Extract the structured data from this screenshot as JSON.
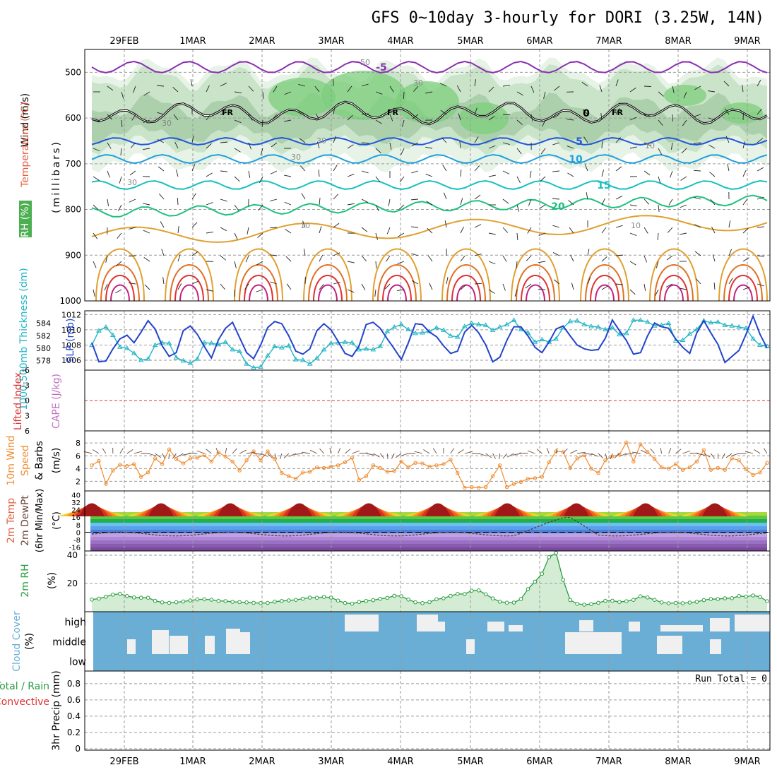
{
  "page": {
    "title": "GFS 0~10day 3-hourly for DORI (3.25W, 14N)"
  },
  "chart_data": {
    "type": "multi-panel-meteogram",
    "colors": {
      "frame": "#000000",
      "grid": "#9a9a9a",
      "wind_label": "#000000",
      "temp_label": "#e06040",
      "rh_label": "#2a9d3f",
      "mb_label": "#000000",
      "thick_line": "#22b5c5",
      "slp_line": "#2244cc",
      "li_label": "#e03030",
      "cape_label": "#c070c0",
      "wind10_line": "#f08c30",
      "temp2m_dash": "#000000",
      "rh2m_line": "#2a9d3f",
      "rh2m_fill": "#d4ecd4",
      "cloud_bg": "#6aaed6",
      "cloud_block": "#f0f0f0",
      "precip_total": "#2a9d3f",
      "precip_conv": "#e03030"
    },
    "x_axis": {
      "type": "time",
      "labels": [
        "29FEB",
        "1MAR",
        "2MAR",
        "3MAR",
        "4MAR",
        "5MAR",
        "6MAR",
        "7MAR",
        "8MAR",
        "9MAR"
      ],
      "range_hours": [
        0,
        240
      ]
    },
    "panels": [
      {
        "name": "upper-air",
        "type": "contour",
        "ylabel_parts": [
          "Wind (m/s)",
          "Temperature (°C)",
          "RH (%)",
          "(millibars)"
        ],
        "y_ticks": [
          "500",
          "600",
          "700",
          "800",
          "900",
          "1000"
        ],
        "ylim": [
          450,
          1000
        ],
        "inverted": true,
        "temperature_contours": [
          {
            "value": -5,
            "label": "-5",
            "color": "#8a2fb0"
          },
          {
            "value": 0,
            "label": "0",
            "color": "#000000",
            "freezing_label": "FR"
          },
          {
            "value": 5,
            "label": "5",
            "color": "#2255dd"
          },
          {
            "value": 10,
            "label": "10",
            "color": "#1fa0e0"
          },
          {
            "value": 15,
            "label": "15",
            "color": "#15c0c0"
          },
          {
            "value": 20,
            "label": "20",
            "color": "#20c080"
          },
          {
            "value": 25,
            "label": "",
            "color": "#e0a030"
          },
          {
            "value": 30,
            "label": "",
            "color": "#e07020"
          },
          {
            "value": 35,
            "label": "",
            "color": "#e03030"
          },
          {
            "value": 40,
            "label": "",
            "color": "#c02080"
          }
        ],
        "rh_labels": [
          "50",
          "30",
          "30",
          "30",
          "30",
          "30",
          "10",
          "10",
          "10"
        ]
      },
      {
        "name": "thickness-slp",
        "type": "line",
        "ylabel_left": "1000-500mb Thickness (dm)",
        "ylabel_right": "SLP (mb)",
        "left_ticks": [
          "578",
          "580",
          "582",
          "584"
        ],
        "left_range": [
          576.5,
          586
        ],
        "right_ticks": [
          "1006",
          "1008",
          "1010",
          "1012"
        ],
        "right_range": [
          1004.7,
          1012.5
        ],
        "series": [
          {
            "name": "1000-500mb Thickness",
            "axis": "left",
            "values": [
              580.5,
              582.8,
              583.4,
              582.1,
              580.2,
              580.0,
              579.2,
              578.1,
              578.3,
              580.5,
              580.9,
              580.8,
              578.5,
              578.0,
              577.6,
              578.3,
              580.9,
              580.8,
              580.6,
              581.0,
              579.8,
              579.5,
              577.5,
              576.9,
              577.0,
              578.8,
              580.3,
              580.1,
              580.4,
              578.2,
              578.1,
              577.5,
              578.4,
              579.8,
              580.8,
              580.9,
              581.0,
              580.9,
              579.8,
              579.9,
              579.8,
              580.3,
              582.7,
              583.4,
              583.8,
              583.0,
              582.4,
              582.5,
              582.7,
              583.3,
              582.9,
              582.0,
              581.8,
              583.5,
              584.0,
              583.8,
              583.7,
              582.9,
              583.4,
              583.8,
              584.5,
              583.0,
              582.5,
              581.0,
              581.4,
              581.0,
              581.5,
              583.3,
              584.3,
              584.4,
              583.8,
              583.5,
              583.4,
              583.0,
              583.3,
              582.2,
              582.4,
              584.5,
              584.5,
              584.2,
              583.6,
              583.7,
              584.0,
              581.2,
              581.3,
              582.3,
              583.0,
              584.4,
              584.1,
              584.2,
              583.7,
              583.6,
              583.4,
              583.2,
              581.5,
              580.5,
              580.3
            ]
          },
          {
            "name": "SLP",
            "axis": "right",
            "values": [
              1008.3,
              1005.8,
              1005.9,
              1007.5,
              1008.8,
              1009.3,
              1008.3,
              1009.7,
              1011.2,
              1010.1,
              1007.9,
              1006.5,
              1007.0,
              1009.9,
              1010.5,
              1009.4,
              1007.8,
              1006.3,
              1008.7,
              1010.2,
              1011.0,
              1009.0,
              1007.0,
              1006.2,
              1008.0,
              1010.3,
              1011.1,
              1010.8,
              1009.2,
              1007.2,
              1006.8,
              1007.5,
              1009.9,
              1010.8,
              1010.0,
              1008.5,
              1006.9,
              1006.5,
              1007.9,
              1010.7,
              1011.0,
              1010.2,
              1008.8,
              1007.5,
              1006.1,
              1008.3,
              1010.8,
              1010.7,
              1009.7,
              1009.1,
              1007.9,
              1006.9,
              1007.2,
              1009.7,
              1010.6,
              1009.6,
              1008.0,
              1005.8,
              1006.4,
              1008.6,
              1010.4,
              1010.4,
              1009.2,
              1007.7,
              1007.0,
              1008.4,
              1010.1,
              1010.5,
              1009.2,
              1008.0,
              1007.5,
              1007.3,
              1007.4,
              1008.9,
              1011.3,
              1009.9,
              1008.6,
              1006.8,
              1007.0,
              1009.2,
              1010.9,
              1010.4,
              1010.2,
              1008.8,
              1007.7,
              1006.9,
              1009.6,
              1011.2,
              1009.6,
              1008.1,
              1005.7,
              1006.5,
              1007.3,
              1009.4,
              1011.8,
              1009.4,
              1007.6
            ]
          }
        ]
      },
      {
        "name": "li-cape",
        "type": "line",
        "ylabel_left": "Lifted Index",
        "ylabel_right": "CAPE (J/kg)",
        "y_ticks": [
          "-6",
          "-3",
          "0",
          "3",
          "6"
        ],
        "ylim": [
          -6,
          6
        ],
        "zero_line": true
      },
      {
        "name": "wind10m",
        "type": "line",
        "ylabel_parts": [
          "10m Wind",
          "Speed",
          "& Barbs",
          "(m/s)"
        ],
        "y_ticks": [
          "2",
          "4",
          "6",
          "8"
        ],
        "ylim": [
          0.5,
          9.9
        ],
        "series": [
          {
            "name": "10m Wind Speed",
            "values": [
              4.5,
              5.2,
              1.6,
              3.7,
              4.6,
              4.4,
              4.7,
              2.7,
              3.4,
              5.6,
              4.7,
              7.0,
              5.5,
              4.8,
              5.6,
              5.7,
              6.1,
              5.1,
              6.5,
              5.9,
              5.1,
              3.7,
              5.3,
              6.7,
              5.3,
              6.7,
              5.5,
              3.3,
              2.8,
              2.4,
              3.4,
              3.5,
              4.2,
              4.1,
              4.3,
              4.5,
              5.0,
              5.7,
              2.2,
              2.8,
              4.5,
              4.1,
              3.5,
              3.6,
              5.1,
              4.2,
              4.9,
              4.8,
              4.3,
              4.5,
              4.7,
              5.4,
              3.3,
              1.0,
              1.1,
              1.0,
              1.1,
              2.8,
              4.5,
              1.1,
              1.6,
              1.9,
              2.4,
              2.5,
              2.7,
              5.0,
              6.7,
              6.6,
              4.1,
              5.6,
              6.1,
              4.0,
              3.3,
              5.3,
              5.9,
              6.2,
              8.1,
              5.1,
              7.8,
              6.6,
              5.5,
              4.2,
              4.0,
              4.7,
              3.8,
              4.2,
              5.1,
              6.9,
              3.8,
              4.1,
              3.8,
              5.6,
              5.3,
              3.9,
              3.0,
              3.4,
              4.9
            ]
          }
        ]
      },
      {
        "name": "temp2m",
        "type": "area",
        "ylabel_parts": [
          "2m Temp",
          "2m DewPt",
          "(6hr Min/Max)",
          "(°C)"
        ],
        "y_ticks": [
          "-16",
          "-8",
          "0",
          "8",
          "16",
          "24",
          "32",
          "40"
        ],
        "ylim": [
          -20,
          44
        ],
        "temp_min": 23,
        "temp_max": 40,
        "dewpoint_range": [
          -4,
          11
        ]
      },
      {
        "name": "rh2m",
        "type": "area",
        "ylabel_parts": [
          "2m RH",
          "(%)"
        ],
        "y_ticks": [
          "20",
          "40"
        ],
        "ylim": [
          0,
          43
        ],
        "series": [
          {
            "name": "2m RH",
            "values": [
              8.6,
              9.3,
              10.6,
              12.1,
              12.7,
              11.1,
              10.1,
              9.9,
              9.9,
              7.7,
              6.6,
              6.3,
              6.7,
              7.2,
              8.0,
              8.7,
              8.8,
              8.5,
              7.7,
              7.5,
              7.0,
              6.8,
              6.6,
              6.3,
              6.1,
              6.2,
              7.1,
              7.6,
              8.0,
              8.4,
              9.2,
              10.0,
              9.9,
              10.5,
              10.0,
              7.9,
              6.2,
              5.7,
              6.9,
              7.6,
              8.2,
              9.1,
              9.8,
              11.3,
              11.0,
              8.6,
              6.7,
              6.1,
              6.8,
              8.8,
              9.5,
              11.2,
              12.6,
              12.5,
              14.9,
              15.1,
              12.3,
              9.4,
              7.1,
              6.4,
              6.5,
              8.9,
              16.0,
              21.3,
              26.9,
              38.6,
              41.6,
              22.6,
              8.3,
              5.6,
              5.0,
              5.4,
              6.3,
              7.7,
              7.8,
              6.9,
              7.4,
              8.4,
              10.9,
              10.1,
              8.4,
              6.6,
              6.0,
              6.2,
              6.0,
              6.5,
              7.0,
              8.2,
              9.0,
              8.9,
              9.5,
              9.6,
              11.1,
              10.7,
              11.5,
              10.5,
              7.4
            ]
          }
        ]
      },
      {
        "name": "cloud",
        "type": "heatmap",
        "ylabel_parts": [
          "Cloud Cover",
          "(%)"
        ],
        "y_ticks": [
          "high",
          "middle",
          "low"
        ]
      },
      {
        "name": "precip",
        "type": "bar",
        "ylabel_parts": [
          "3hr Precip (mm)"
        ],
        "ylabel_left_parts": [
          "Total / Rain",
          "Convective"
        ],
        "y_ticks": [
          "0",
          "0.2",
          "0.4",
          "0.6",
          "0.8"
        ],
        "ylim": [
          0,
          0.92
        ],
        "run_total_text": "Run Total = 0"
      }
    ]
  }
}
